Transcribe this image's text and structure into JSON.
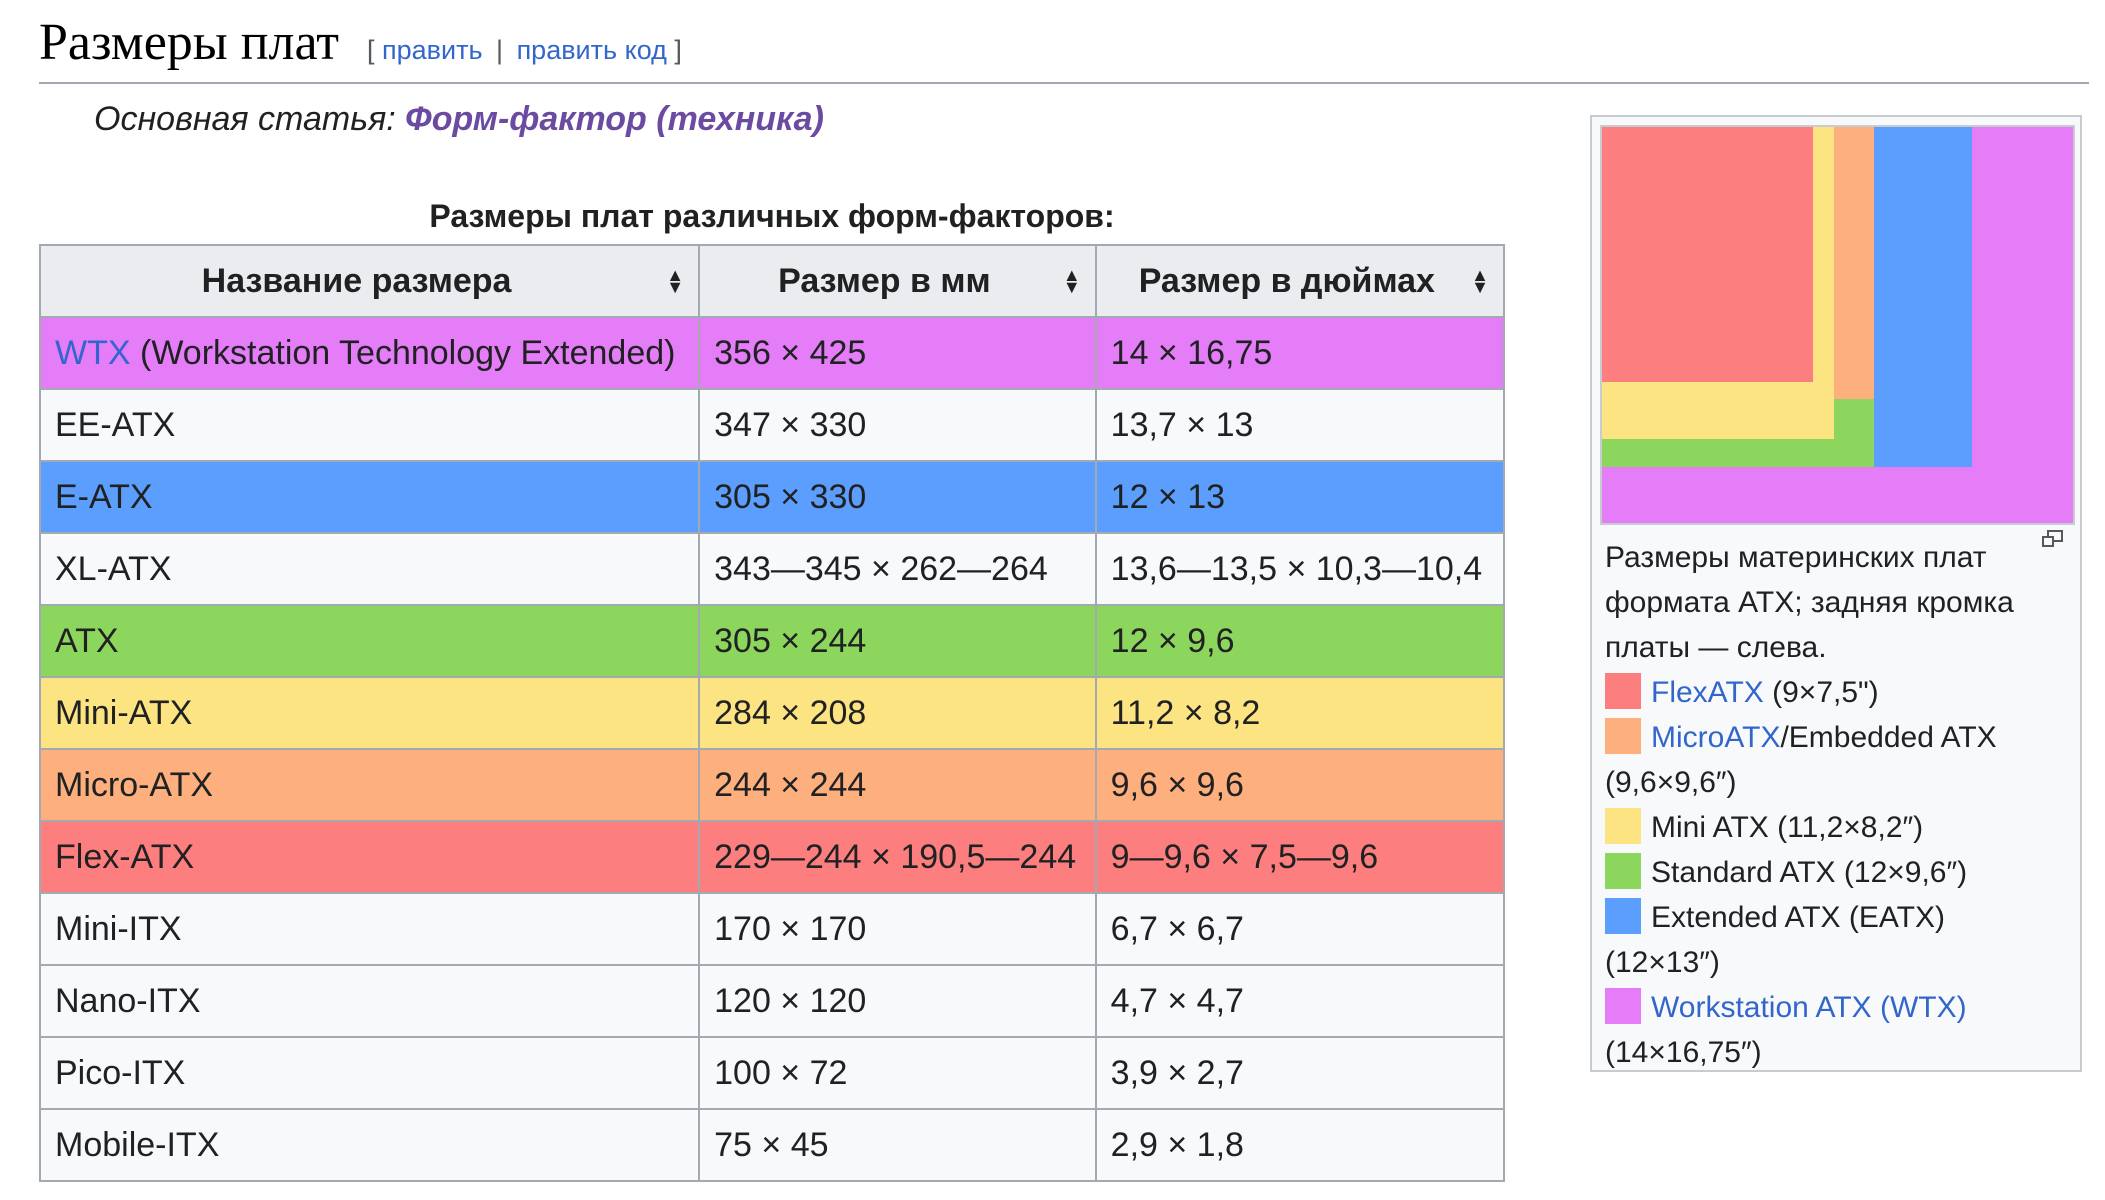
{
  "heading": {
    "title": "Размеры плат",
    "edit_open": "[",
    "edit_label": "править",
    "edit_sep": "|",
    "edit_code_label": "править код",
    "edit_close": "]"
  },
  "hatnote": {
    "prefix": "Основная статья: ",
    "link": "Форм-фактор (техника)"
  },
  "table": {
    "caption": "Размеры плат различных форм-факторов:",
    "headers": [
      "Название размера",
      "Размер в мм",
      "Размер в дюймах"
    ],
    "rows": [
      {
        "name_link": "WTX",
        "name": " (Workstation Technology Extended)",
        "mm": "356 × 425",
        "inch": "14 × 16,75",
        "color": "#e57df8"
      },
      {
        "name_link": "",
        "name": "EE-ATX",
        "mm": "347 × 330",
        "inch": "13,7 × 13",
        "color": "#f8f9fa"
      },
      {
        "name_link": "",
        "name": "E-ATX",
        "mm": "305 × 330",
        "inch": "12 × 13",
        "color": "#5c9efd"
      },
      {
        "name_link": "",
        "name": "XL-ATX",
        "mm": "343—345 × 262—264",
        "inch": "13,6—13,5 × 10,3—10,4",
        "color": "#f8f9fa"
      },
      {
        "name_link": "",
        "name": "ATX",
        "mm": "305 × 244",
        "inch": "12 × 9,6",
        "color": "#8cd65e"
      },
      {
        "name_link": "",
        "name": "Mini-ATX",
        "mm": "284 × 208",
        "inch": "11,2 × 8,2",
        "color": "#fde482"
      },
      {
        "name_link": "",
        "name": "Micro-ATX",
        "mm": "244 × 244",
        "inch": "9,6 × 9,6",
        "color": "#fdb07e"
      },
      {
        "name_link": "",
        "name": "Flex-ATX",
        "mm": "229—244 × 190,5—244",
        "inch": "9—9,6 × 7,5—9,6",
        "color": "#fd7e7e"
      },
      {
        "name_link": "",
        "name": "Mini-ITX",
        "mm": "170 × 170",
        "inch": "6,7 × 6,7",
        "color": "#f8f9fa"
      },
      {
        "name_link": "",
        "name": "Nano-ITX",
        "mm": "120 × 120",
        "inch": "4,7 × 4,7",
        "color": "#f8f9fa"
      },
      {
        "name_link": "",
        "name": "Pico-ITX",
        "mm": "100 × 72",
        "inch": "3,9 × 2,7",
        "color": "#f8f9fa"
      },
      {
        "name_link": "",
        "name": "Mobile-ITX",
        "mm": "75 × 45",
        "inch": "2,9 × 1,8",
        "color": "#f8f9fa"
      }
    ]
  },
  "thumb": {
    "caption": "Размеры материнских плат формата ATX; задняя кромка платы — слева.",
    "legend": [
      {
        "link": "FlexATX",
        "text": " (9×7,5\")",
        "color": "#fd7e7e"
      },
      {
        "link": "MicroATX",
        "text": "/Embedded ATX (9,6×9,6″)",
        "color": "#fdb07e"
      },
      {
        "link": "",
        "text": "Mini ATX (11,2×8,2″)",
        "color": "#fde482"
      },
      {
        "link": "",
        "text": "Standard ATX (12×9,6″)",
        "color": "#8cd65e"
      },
      {
        "link": "",
        "text": "Extended ATX (EATX) (12×13″)",
        "color": "#5c9efd"
      },
      {
        "link": "Workstation ATX (WTX)",
        "text": " (14×16,75″)",
        "color": "#e57df8"
      }
    ]
  },
  "colors": {
    "link": "#3366cc",
    "visited_link": "#6b4ba1",
    "header_bg": "#eaecf0",
    "border": "#a2a9b1"
  },
  "icons": {
    "sort": "sort-icon",
    "magnify": "magnify-icon"
  }
}
